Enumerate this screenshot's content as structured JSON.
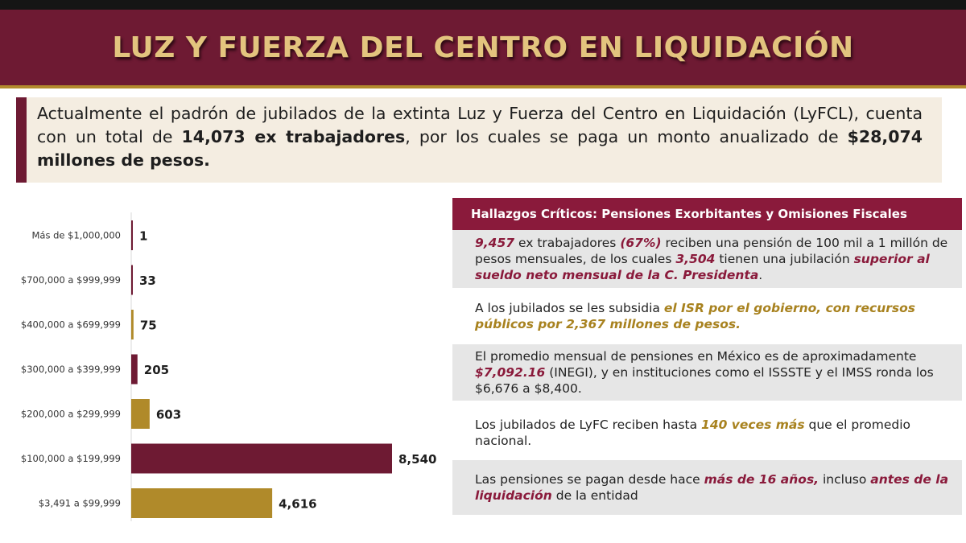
{
  "header": {
    "title": "LUZ Y FUERZA DEL CENTRO EN LIQUIDACIÓN"
  },
  "intro": {
    "part1": "Actualmente el padrón de jubilados de la extinta Luz y Fuerza del Centro en Liquidación (LyFCL), cuenta con un total de ",
    "bold1": "14,073 ex trabajadores",
    "part2": ", por los cuales se paga un monto anualizado de ",
    "bold2": "$28,074 millones de pesos."
  },
  "chart_data": {
    "type": "bar",
    "orientation": "horizontal",
    "categories": [
      "Más de $1,000,000",
      "$700,000 a $999,999",
      "$400,000 a $699,999",
      "$300,000 a $399,999",
      "$200,000 a $299,999",
      "$100,000 a $199,999",
      "$3,491 a $99,999"
    ],
    "values": [
      1,
      33,
      75,
      205,
      603,
      8540,
      4616
    ],
    "value_labels": [
      "1",
      "33",
      "75",
      "205",
      "603",
      "8,540",
      "4,616"
    ],
    "colors": [
      "#6e1a33",
      "#6e1a33",
      "#b08a2a",
      "#6e1a33",
      "#b08a2a",
      "#6e1a33",
      "#b08a2a"
    ],
    "xlim": [
      0,
      8540
    ],
    "grid": false,
    "legend": "none"
  },
  "panel": {
    "header": "Hallazgos Críticos: Pensiones Exorbitantes y Omisiones Fiscales",
    "f1": {
      "a": "9,457",
      "b": " ex trabajadores ",
      "c": "(67%)",
      "d": " reciben una pensión de 100 mil a 1 millón de pesos mensuales, de los cuales ",
      "e": "3,504",
      "f": " tienen una jubilación ",
      "g": "superior al sueldo neto mensual de la C. Presidenta",
      "h": "."
    },
    "f2": {
      "a": "A los jubilados se les subsidia ",
      "b": "el ISR por el gobierno, con recursos públicos por 2,367 millones de pesos."
    },
    "f3": {
      "a": "El promedio mensual de pensiones en México es de aproximadamente ",
      "b": "$7,092.16",
      "c": " (INEGI), y en instituciones como  el ISSSTE y el IMSS ronda los $6,676 a $8,400."
    },
    "f4": {
      "a": "Los jubilados de LyFC reciben hasta ",
      "b": "140 veces más",
      "c": " que el promedio nacional."
    },
    "f5": {
      "a": "Las pensiones se pagan desde hace ",
      "b": "más de 16 años,",
      "c": " incluso ",
      "d": "antes de la liquidación",
      "e": " de la entidad"
    }
  }
}
